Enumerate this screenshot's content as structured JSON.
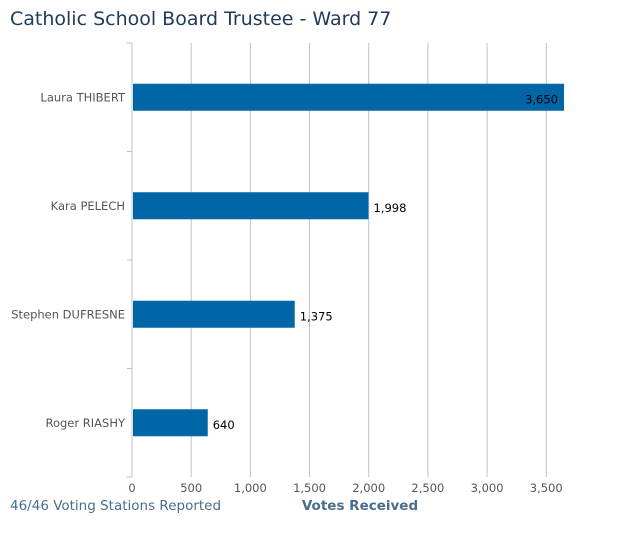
{
  "header": {
    "title": "Catholic School Board Trustee - Ward 77"
  },
  "footer": {
    "stations": "46/46 Voting Stations Reported"
  },
  "colors": {
    "bar": "#0066a6",
    "title": "#1f3a5a",
    "footer": "#4a6d8c",
    "grid": "#b7c3cb"
  },
  "chart_data": {
    "type": "bar",
    "orientation": "horizontal",
    "title": "Catholic School Board Trustee - Ward 77",
    "xlabel": "Votes Received",
    "ylabel": "",
    "categories": [
      "Laura THIBERT",
      "Kara PELECH",
      "Stephen DUFRESNE",
      "Roger RIASHY"
    ],
    "values": [
      3650,
      1998,
      1375,
      640
    ],
    "data_labels": [
      "3,650",
      "1,998",
      "1,375",
      "640"
    ],
    "xlim": [
      0,
      3650
    ],
    "x_ticks": [
      0,
      500,
      1000,
      1500,
      2000,
      2500,
      3000,
      3500
    ],
    "x_tick_labels": [
      "0",
      "500",
      "1,000",
      "1,500",
      "2,000",
      "2,500",
      "3,000",
      "3,500"
    ],
    "grid": true,
    "legend": "none"
  }
}
